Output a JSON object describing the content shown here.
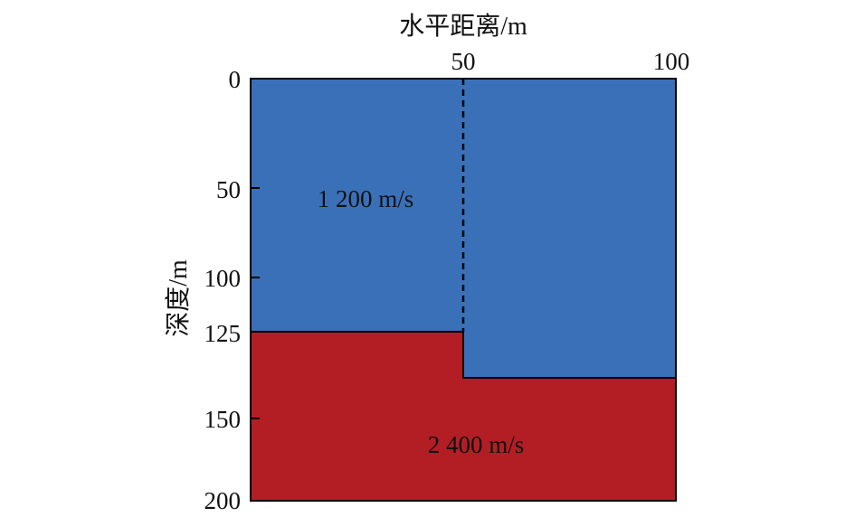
{
  "diagram": {
    "x_axis": {
      "title": "水平距离/m",
      "range": [
        0,
        100
      ],
      "ticks": [
        {
          "value": 50,
          "label": "50"
        },
        {
          "value": 100,
          "label": "100"
        }
      ]
    },
    "y_axis": {
      "title": "深度/m",
      "ticks": [
        {
          "value": 0,
          "label": "0"
        },
        {
          "value": 50,
          "label": "50"
        },
        {
          "value": 100,
          "label": "100"
        },
        {
          "value": 125,
          "label": "125"
        },
        {
          "value": 150,
          "label": "150"
        },
        {
          "value": 200,
          "label": "200"
        }
      ]
    },
    "fault_x": 50,
    "interface_left_depth": 125,
    "interface_right_depth": 145,
    "regions": {
      "upper": {
        "label": "1 200 m/s",
        "color": "#3a70b8"
      },
      "lower": {
        "label": "2 400 m/s",
        "color": "#b21e24"
      }
    }
  }
}
